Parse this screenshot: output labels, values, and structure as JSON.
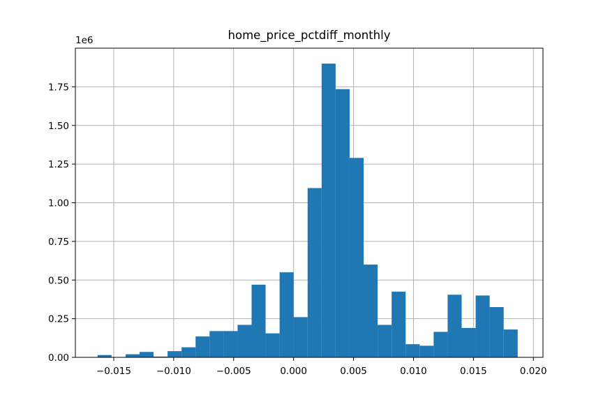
{
  "chart_data": {
    "type": "bar",
    "title": "home_price_pctdiff_monthly",
    "xlabel": "",
    "ylabel": "",
    "y_multiplier_label": "1e6",
    "xlim": [
      -0.0182,
      0.0208
    ],
    "ylim": [
      0,
      2.0
    ],
    "x_ticks": [
      -0.015,
      -0.01,
      -0.005,
      0.0,
      0.005,
      0.01,
      0.015,
      0.02
    ],
    "x_tick_labels": [
      "−0.015",
      "−0.010",
      "−0.005",
      "0.000",
      "0.005",
      "0.010",
      "0.015",
      "0.020"
    ],
    "y_ticks": [
      0,
      0.25,
      0.5,
      0.75,
      1.0,
      1.25,
      1.5,
      1.75
    ],
    "y_tick_labels": [
      "0.00",
      "0.25",
      "0.50",
      "0.75",
      "1.00",
      "1.25",
      "1.50",
      "1.75"
    ],
    "grid": true,
    "bar_color": "#1f77b4",
    "bin_start": -0.01635,
    "bin_width": 0.001168,
    "counts_millions": [
      0.015,
      0.0,
      0.02,
      0.035,
      0.005,
      0.04,
      0.065,
      0.135,
      0.17,
      0.17,
      0.21,
      0.47,
      0.155,
      0.55,
      0.26,
      1.095,
      1.9,
      1.735,
      1.29,
      0.6,
      0.21,
      0.425,
      0.085,
      0.075,
      0.165,
      0.405,
      0.19,
      0.4,
      0.325,
      0.18
    ]
  }
}
